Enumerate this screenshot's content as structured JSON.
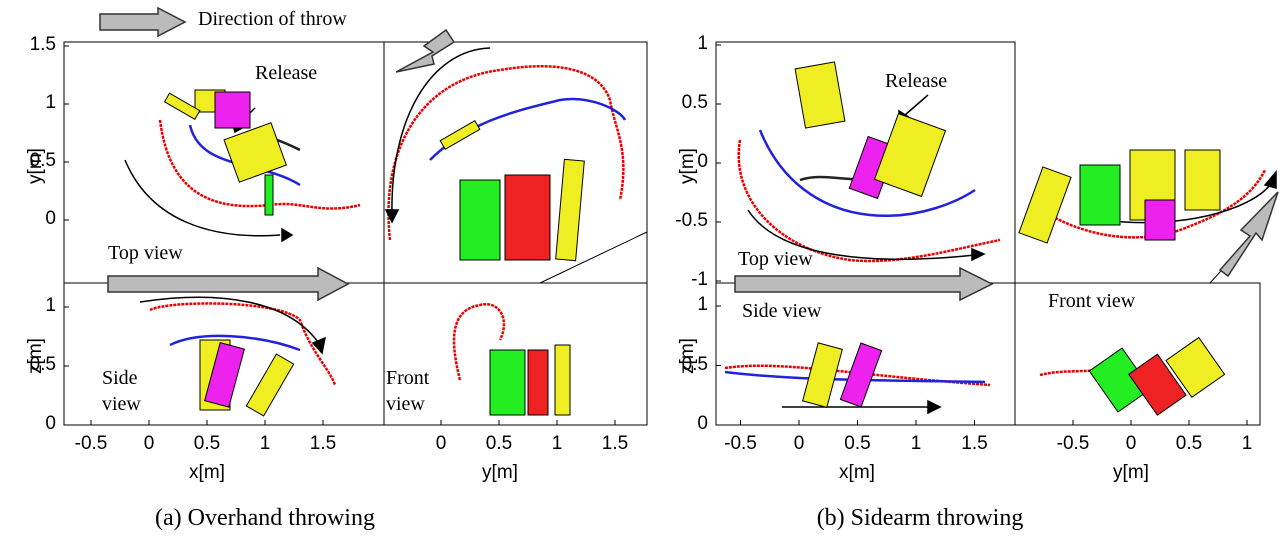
{
  "header_arrow": "Direction of throw",
  "panels": [
    {
      "caption": "(a) Overhand throwing",
      "top_ylabel": "y[m]",
      "side_ylabel": "z[m]",
      "side_xlabel": "x[m]",
      "front_xlabel": "y[m]",
      "top_yticks": [
        1.5,
        1,
        0.5,
        0
      ],
      "side_yticks": [
        1,
        0.5,
        0
      ],
      "side_xticks": [
        -0.5,
        0,
        0.5,
        1,
        1.5
      ],
      "front_xticks": [
        0,
        0.5,
        1,
        1.5
      ],
      "release": "Release",
      "top_view": "Top view",
      "side_view": "Side view",
      "front_view": "Front view"
    },
    {
      "caption": "(b) Sidearm throwing",
      "top_ylabel": "y[m]",
      "side_ylabel": "z[m]",
      "side_xlabel": "x[m]",
      "front_xlabel": "y[m]",
      "top_yticks": [
        1,
        0.5,
        0,
        -0.5,
        -1
      ],
      "side_yticks": [
        1,
        0.5,
        0
      ],
      "side_xticks": [
        -0.5,
        0,
        0.5,
        1,
        1.5
      ],
      "front_xticks": [
        -0.5,
        0,
        0.5,
        1
      ],
      "release": "Release",
      "top_view": "Top view",
      "side_view": "Side view",
      "front_view": "Front view"
    }
  ]
}
